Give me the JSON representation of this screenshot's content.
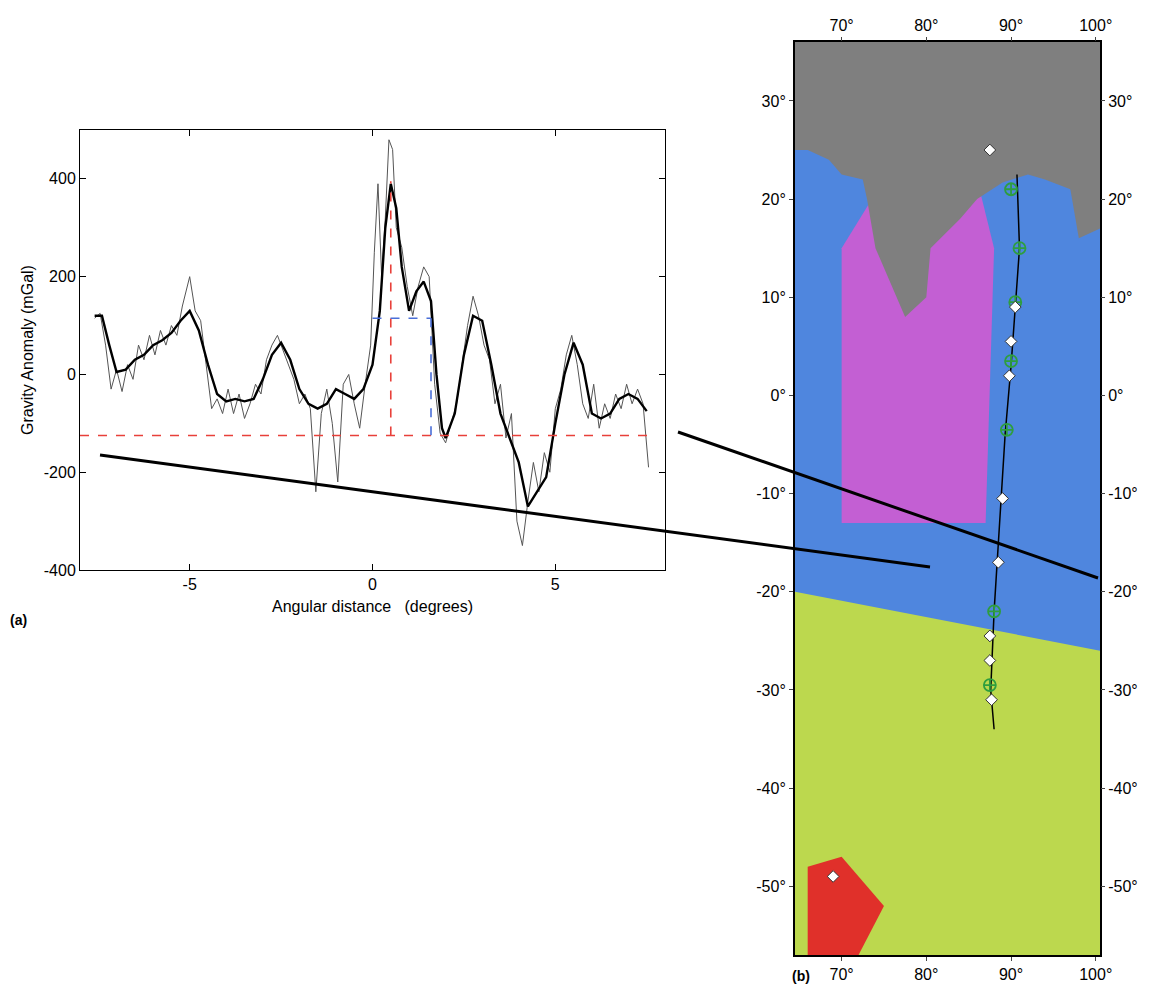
{
  "chart_data": [
    {
      "type": "line",
      "panel": "(a)",
      "x_title": "Angular distance   (degrees)",
      "y_title": "Gravity Anomaly (mGal)",
      "xlim": [
        -8,
        8
      ],
      "ylim": [
        -400,
        500
      ],
      "xticks": [
        -5,
        0,
        5
      ],
      "yticks": [
        -400,
        -200,
        0,
        200,
        400
      ],
      "grid": false,
      "series": [
        {
          "color": "#555555",
          "line_style": "solid",
          "x": [
            -7.6,
            -7.45,
            -7.3,
            -7.15,
            -7.0,
            -6.85,
            -6.7,
            -6.55,
            -6.4,
            -6.25,
            -6.1,
            -5.95,
            -5.8,
            -5.65,
            -5.5,
            -5.35,
            -5.2,
            -5.0,
            -4.85,
            -4.7,
            -4.55,
            -4.4,
            -4.25,
            -4.1,
            -3.95,
            -3.8,
            -3.65,
            -3.5,
            -3.35,
            -3.2,
            -3.05,
            -2.9,
            -2.75,
            -2.6,
            -2.45,
            -2.3,
            -2.15,
            -2.0,
            -1.85,
            -1.7,
            -1.55,
            -1.4,
            -1.25,
            -1.1,
            -0.95,
            -0.8,
            -0.65,
            -0.5,
            -0.35,
            -0.2,
            -0.05,
            0.05,
            0.15,
            0.25,
            0.35,
            0.45,
            0.55,
            0.65,
            0.8,
            0.95,
            1.1,
            1.25,
            1.4,
            1.55,
            1.7,
            1.85,
            2.0,
            2.15,
            2.3,
            2.45,
            2.6,
            2.75,
            2.9,
            3.05,
            3.2,
            3.35,
            3.5,
            3.65,
            3.8,
            3.95,
            4.1,
            4.25,
            4.4,
            4.55,
            4.7,
            4.85,
            5.0,
            5.15,
            5.3,
            5.45,
            5.6,
            5.75,
            5.9,
            6.05,
            6.2,
            6.35,
            6.5,
            6.65,
            6.8,
            6.95,
            7.1,
            7.25,
            7.4,
            7.55
          ],
          "values": [
            115,
            125,
            60,
            -30,
            10,
            -35,
            20,
            -10,
            60,
            30,
            80,
            40,
            90,
            60,
            100,
            80,
            140,
            200,
            130,
            110,
            20,
            -70,
            -50,
            -80,
            -30,
            -80,
            -40,
            -90,
            -60,
            -20,
            -40,
            30,
            60,
            80,
            50,
            20,
            -10,
            -60,
            -40,
            -70,
            -240,
            -80,
            -30,
            -100,
            -220,
            -20,
            0,
            -60,
            -110,
            -20,
            60,
            250,
            390,
            200,
            320,
            480,
            460,
            300,
            260,
            180,
            120,
            180,
            220,
            200,
            -20,
            -120,
            -140,
            -100,
            -60,
            20,
            100,
            160,
            120,
            60,
            30,
            -60,
            -20,
            -130,
            -80,
            -300,
            -350,
            -260,
            -180,
            -240,
            -160,
            -200,
            -70,
            -30,
            40,
            80,
            20,
            -60,
            -90,
            -20,
            -110,
            -60,
            -90,
            -40,
            -70,
            -20,
            -60,
            -30,
            -60,
            -190
          ]
        },
        {
          "color": "#000000",
          "line_style": "solid",
          "x": [
            -7.6,
            -7.4,
            -7.2,
            -7.0,
            -6.75,
            -6.5,
            -6.25,
            -6.0,
            -5.75,
            -5.5,
            -5.25,
            -5.0,
            -4.75,
            -4.5,
            -4.25,
            -4.0,
            -3.75,
            -3.5,
            -3.25,
            -3.0,
            -2.75,
            -2.5,
            -2.25,
            -2.0,
            -1.75,
            -1.5,
            -1.25,
            -1.0,
            -0.75,
            -0.5,
            -0.25,
            0,
            0.2,
            0.35,
            0.5,
            0.65,
            0.8,
            1.0,
            1.2,
            1.4,
            1.6,
            1.75,
            1.9,
            2.0,
            2.25,
            2.5,
            2.75,
            3.0,
            3.25,
            3.5,
            3.75,
            4.0,
            4.25,
            4.5,
            4.75,
            5.0,
            5.25,
            5.5,
            5.75,
            6.0,
            6.25,
            6.5,
            6.75,
            7.0,
            7.25,
            7.5
          ],
          "values": [
            120,
            120,
            60,
            5,
            10,
            30,
            40,
            60,
            70,
            85,
            110,
            130,
            90,
            20,
            -40,
            -55,
            -50,
            -55,
            -50,
            -10,
            40,
            65,
            30,
            -30,
            -60,
            -70,
            -60,
            -30,
            -40,
            -50,
            -30,
            20,
            130,
            300,
            390,
            340,
            220,
            130,
            170,
            190,
            150,
            0,
            -110,
            -130,
            -80,
            40,
            120,
            110,
            20,
            -80,
            -130,
            -180,
            -270,
            -240,
            -210,
            -100,
            0,
            65,
            20,
            -80,
            -90,
            -80,
            -50,
            -40,
            -50,
            -75
          ]
        }
      ],
      "reference_lines": [
        {
          "color": "#e8403a",
          "line_style": "dash",
          "x": [
            -8,
            7.7
          ],
          "y": [
            -125,
            -125
          ]
        },
        {
          "color": "#e8403a",
          "line_style": "dash",
          "x": [
            0.5,
            0.5
          ],
          "y": [
            -125,
            395
          ]
        },
        {
          "color": "#4a6fd8",
          "line_style": "dash",
          "x": [
            0,
            1.6
          ],
          "y": [
            115,
            115
          ]
        },
        {
          "color": "#4a6fd8",
          "line_style": "dash",
          "x": [
            1.6,
            1.6
          ],
          "y": [
            115,
            -125
          ]
        }
      ]
    },
    {
      "type": "map",
      "panel": "(b)",
      "xlim": [
        64.5,
        100.5
      ],
      "ylim": [
        -57,
        36
      ],
      "xticks": [
        {
          "value": 70,
          "label": "70°"
        },
        {
          "value": 80,
          "label": "80°"
        },
        {
          "value": 90,
          "label": "90°"
        },
        {
          "value": 100,
          "label": "100°"
        }
      ],
      "yticks": [
        {
          "value": -50,
          "label": "-50°"
        },
        {
          "value": -40,
          "label": "-40°"
        },
        {
          "value": -30,
          "label": "-30°"
        },
        {
          "value": -20,
          "label": "-20°"
        },
        {
          "value": -10,
          "label": "-10°"
        },
        {
          "value": 0,
          "label": "0°"
        },
        {
          "value": 10,
          "label": "10°"
        },
        {
          "value": 20,
          "label": "20°"
        },
        {
          "value": 30,
          "label": "30°"
        }
      ],
      "grid": false,
      "regions": [
        {
          "color": "#bcd84e",
          "x": [
            64.5,
            100.5,
            100.5,
            64.5
          ],
          "y": [
            -57,
            -57,
            -20,
            -20
          ]
        },
        {
          "color": "#4f86de",
          "x": [
            64.5,
            100.5,
            100.5,
            64.5
          ],
          "y": [
            -20,
            -26,
            36,
            36
          ]
        },
        {
          "color": "#c35fd3",
          "x": [
            70,
            87,
            88,
            86,
            75,
            70
          ],
          "y": [
            -13,
            -13,
            15,
            22,
            22,
            15
          ]
        },
        {
          "color": "#e0302a",
          "x": [
            66,
            72,
            75,
            70,
            66
          ],
          "y": [
            -57,
            -57,
            -52,
            -47,
            -48
          ]
        },
        {
          "color": "#7f7f7f",
          "x": [
            64.5,
            100.5,
            100.5,
            98,
            97,
            94,
            92,
            89,
            86,
            84,
            80.5,
            80,
            77.5,
            76.5,
            74,
            73,
            72.5,
            70,
            68.5,
            66,
            64.5
          ],
          "y": [
            36,
            36,
            17,
            16,
            21,
            22,
            22.5,
            21.7,
            20,
            18,
            15,
            10,
            8,
            10,
            15,
            20,
            22,
            22.5,
            24,
            25,
            25
          ]
        }
      ],
      "track": {
        "color": "#000000",
        "x": [
          90.7,
          91,
          90.5,
          90,
          89.3,
          88.8,
          88,
          87.6,
          88
        ],
        "y": [
          22.5,
          15,
          9,
          3,
          -4,
          -11,
          -22,
          -30,
          -34
        ]
      },
      "series": [
        {
          "marker": "circle-cross",
          "color": "#2e9e3e",
          "x": [
            90,
            91,
            90.5,
            90,
            89.5,
            88,
            87.5
          ],
          "values": [
            21,
            15,
            9.5,
            3.5,
            -3.5,
            -22,
            -29.5
          ]
        },
        {
          "marker": "diamond",
          "color": "#ffffff",
          "x": [
            87.5,
            90.5,
            90,
            89.8,
            89,
            88.5,
            87.5,
            87.5,
            87.7,
            69
          ],
          "values": [
            25,
            9,
            5.5,
            2,
            -10.5,
            -17,
            -24.5,
            -27,
            -31,
            -49
          ]
        }
      ]
    }
  ]
}
